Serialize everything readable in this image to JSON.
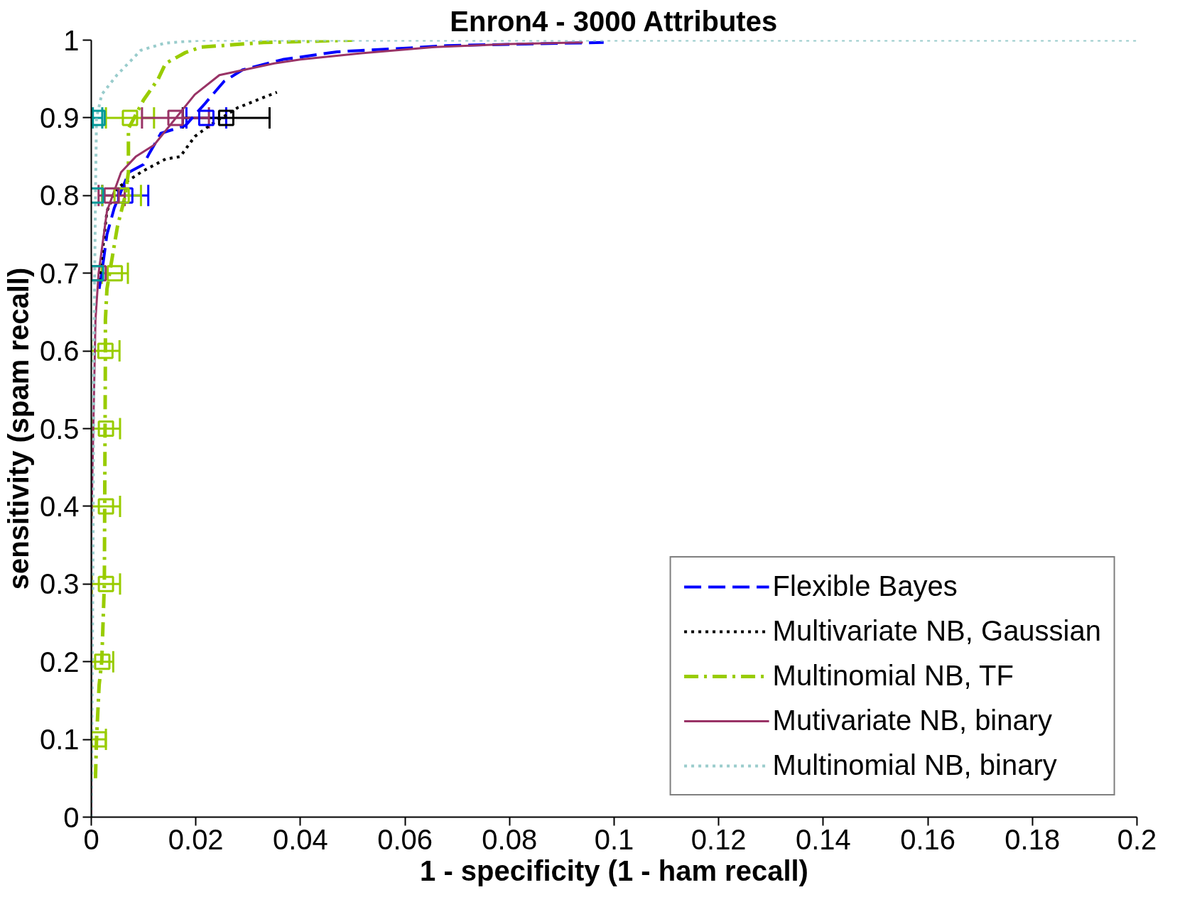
{
  "chart_data": {
    "type": "line",
    "title": "Enron4 - 3000 Attributes",
    "xlabel": "1 - specificity (1 - ham recall)",
    "ylabel": "sensitivity (spam recall)",
    "xlim": [
      0,
      0.2
    ],
    "ylim": [
      0,
      1
    ],
    "xticks": [
      0,
      0.02,
      0.04,
      0.06,
      0.08,
      0.1,
      0.12,
      0.14,
      0.16,
      0.18,
      0.2
    ],
    "yticks": [
      0,
      0.1,
      0.2,
      0.3,
      0.4,
      0.5,
      0.6,
      0.7,
      0.8,
      0.9,
      1
    ],
    "grid": false,
    "legend": "bottom right",
    "series": [
      {
        "name": "Flexible Bayes",
        "color": "#0000ff",
        "line_style": "dashed",
        "x": [
          0.0015,
          0.002,
          0.003,
          0.0044,
          0.0072,
          0.01,
          0.011,
          0.0133,
          0.018,
          0.0217,
          0.0254,
          0.029,
          0.0366,
          0.047,
          0.061,
          0.068,
          0.098
        ],
        "values": [
          0.68,
          0.7,
          0.75,
          0.784,
          0.83,
          0.84,
          0.853,
          0.88,
          0.89,
          0.918,
          0.947,
          0.962,
          0.975,
          0.985,
          0.99,
          0.993,
          0.997
        ]
      },
      {
        "name": "Multivariate NB, Gaussian",
        "color": "#000000",
        "line_style": "dotted",
        "x": [
          0.0015,
          0.002,
          0.003,
          0.005,
          0.0095,
          0.0142,
          0.017,
          0.0198,
          0.0226,
          0.028,
          0.0355
        ],
        "values": [
          0.69,
          0.72,
          0.78,
          0.81,
          0.83,
          0.847,
          0.85,
          0.876,
          0.89,
          0.913,
          0.933
        ]
      },
      {
        "name": "Multinomial NB, TF",
        "color": "#99cc00",
        "line_style": "dashdot",
        "x": [
          0.0008,
          0.001,
          0.0015,
          0.002,
          0.0025,
          0.0027,
          0.0027,
          0.003,
          0.004,
          0.005,
          0.0065,
          0.0071,
          0.0071,
          0.01,
          0.0128,
          0.0142,
          0.018,
          0.021,
          0.033,
          0.05
        ],
        "values": [
          0.05,
          0.1,
          0.17,
          0.2,
          0.3,
          0.6,
          0.64,
          0.68,
          0.72,
          0.76,
          0.8,
          0.83,
          0.886,
          0.923,
          0.95,
          0.97,
          0.984,
          0.991,
          0.997,
          1.0
        ]
      },
      {
        "name": "Mutivariate NB, binary",
        "color": "#993366",
        "line_style": "solid",
        "x": [
          0,
          0,
          0.0008,
          0.0014,
          0.003,
          0.0057,
          0.0085,
          0.012,
          0.015,
          0.0198,
          0.0245,
          0.035,
          0.04,
          0.0516,
          0.0656,
          0.08,
          0.094
        ],
        "values": [
          0,
          0.37,
          0.64,
          0.7,
          0.78,
          0.83,
          0.85,
          0.865,
          0.89,
          0.93,
          0.955,
          0.97,
          0.975,
          0.983,
          0.991,
          0.995,
          0.997
        ]
      },
      {
        "name": "Multinomial NB, binary",
        "color": "#99cccc",
        "line_style": "dotted",
        "x": [
          0,
          0.0003,
          0.0005,
          0.0008,
          0.001,
          0.002,
          0.0049,
          0.0095,
          0.014,
          0.021,
          0.2
        ],
        "values": [
          0,
          0.3,
          0.6,
          0.8,
          0.9,
          0.93,
          0.955,
          0.987,
          0.996,
          1.0,
          1.0
        ]
      },
      {
        "type": "scatter",
        "marker": "square",
        "color": "#0000ff",
        "x": [
          0.0065,
          0.022
        ],
        "values": [
          0.8,
          0.9
        ],
        "xerrors": [
          0.0044,
          0.0038
        ]
      },
      {
        "type": "scatter",
        "marker": "square",
        "color": "#000000",
        "x": [
          0.0258
        ],
        "values": [
          0.9
        ],
        "xerrors": [
          0.0083
        ]
      },
      {
        "type": "scatter",
        "marker": "square",
        "color": "#99cc00",
        "x": [
          0.0014,
          0.0021,
          0.0028,
          0.0028,
          0.0028,
          0.0027,
          0.0045,
          0.0058,
          0.0074
        ],
        "values": [
          0.1,
          0.2,
          0.3,
          0.4,
          0.5,
          0.6,
          0.7,
          0.8,
          0.9
        ],
        "xerrors": [
          0.0014,
          0.0021,
          0.0027,
          0.0027,
          0.0027,
          0.0027,
          0.0025,
          0.0037,
          0.0046
        ]
      },
      {
        "type": "scatter",
        "marker": "square",
        "color": "#993366",
        "x": [
          0.0014,
          0.0039,
          0.0161
        ],
        "values": [
          0.7,
          0.8,
          0.9
        ],
        "xerrors": [
          null,
          0.0025,
          0.0064
        ]
      },
      {
        "type": "scatter",
        "marker": "square",
        "color": "#009999",
        "x": [
          0.0009,
          0.0009,
          0.0012
        ],
        "values": [
          0.7,
          0.8,
          0.9
        ],
        "xerrors": [
          null,
          null,
          0.0009
        ]
      }
    ]
  }
}
